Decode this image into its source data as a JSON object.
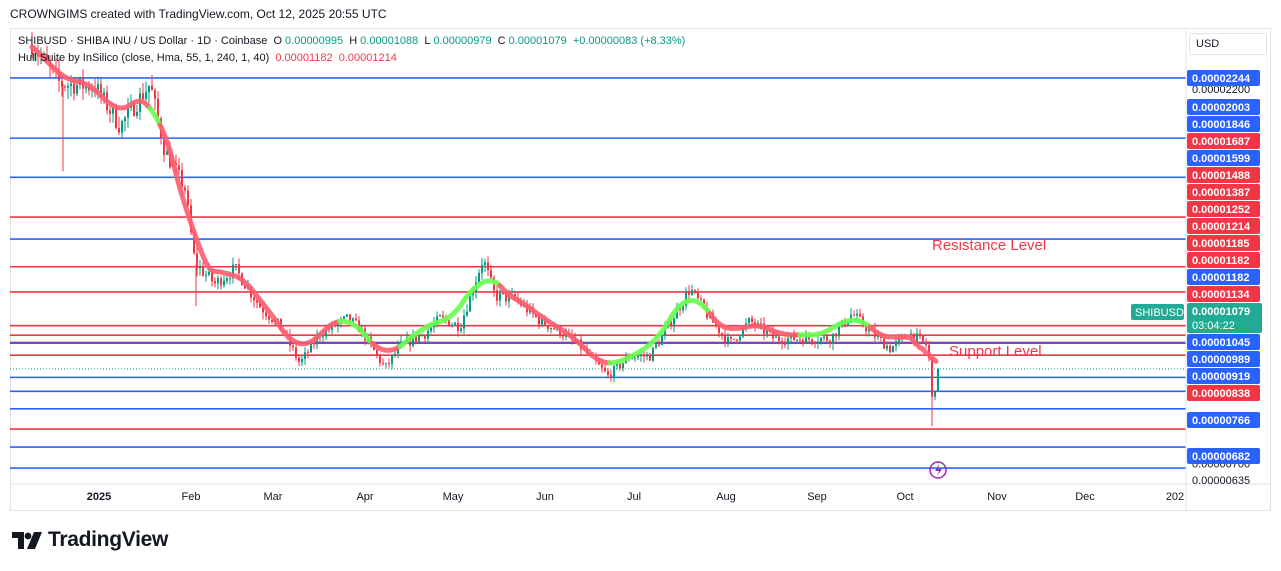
{
  "header": {
    "creator": "CROWNGIMS created with TradingView.com, Oct 12, 2025 20:55 UTC"
  },
  "legend": {
    "symbol": "SHIBUSD · SHIBA INU / US Dollar · 1D · Coinbase",
    "o_label": "O",
    "o_value": "0.00000995",
    "h_label": "H",
    "h_value": "0.00001088",
    "l_label": "L",
    "l_value": "0.00000979",
    "c_label": "C",
    "c_value": "0.00001079",
    "change": "+0.00000083 (+8.33%)",
    "indicator": "Hull Suite by InSilico (close, Hma, 55, 1, 240, 1, 40)",
    "ind_value1": "0.00001182",
    "ind_value2": "0.00001214"
  },
  "price_scale": {
    "currency": "USD"
  },
  "brand": {
    "name": "TradingView"
  },
  "colors": {
    "blue_line": "#2962ff",
    "red_line": "#f23645",
    "up_candle": "#089981",
    "down_candle": "#f23645",
    "hull_up": "#66ff4d",
    "hull_down": "#ff5c6e"
  },
  "chart_data": {
    "type": "candlestick",
    "symbol_badge": "SHIBUSD",
    "last_price": "0.00001079",
    "countdown": "03:04:22",
    "time_axis": [
      "2025",
      "Feb",
      "Mar",
      "Apr",
      "May",
      "Jun",
      "Jul",
      "Aug",
      "Sep",
      "Oct",
      "Nov",
      "Dec",
      "202"
    ],
    "axis_ticks": [
      {
        "label": "0.00002200",
        "value": 2.2e-05
      },
      {
        "label": "0.00000700",
        "value": 7e-06
      },
      {
        "label": "0.00000635",
        "value": 6.35e-06
      }
    ],
    "ylim": [
      6.18e-06,
      2.44e-05
    ],
    "horizontal_levels": [
      {
        "label": "0.00002244",
        "value": 2.244e-05,
        "color": "blue"
      },
      {
        "label": "0.00002003",
        "value": 2.003e-05,
        "color": "blue"
      },
      {
        "label": "0.00001846",
        "value": 1.846e-05,
        "color": "blue"
      },
      {
        "label": "0.00001687",
        "value": 1.687e-05,
        "color": "red"
      },
      {
        "label": "0.00001599",
        "value": 1.599e-05,
        "color": "blue"
      },
      {
        "label": "0.00001488",
        "value": 1.488e-05,
        "color": "red"
      },
      {
        "label": "0.00001387",
        "value": 1.387e-05,
        "color": "red"
      },
      {
        "label": "0.00001252",
        "value": 1.252e-05,
        "color": "red"
      },
      {
        "label": "0.00001214",
        "value": 1.214e-05,
        "color": "red"
      },
      {
        "label": "0.00001185",
        "value": 1.185e-05,
        "color": "red"
      },
      {
        "label": "0.00001182",
        "value": 1.182e-05,
        "color": "red"
      },
      {
        "label": "0.00001182",
        "value": 1.182e-05,
        "color": "blue"
      },
      {
        "label": "0.00001134",
        "value": 1.134e-05,
        "color": "red"
      },
      {
        "label": "0.00001045",
        "value": 1.045e-05,
        "color": "blue"
      },
      {
        "label": "0.00000989",
        "value": 9.89e-06,
        "color": "blue"
      },
      {
        "label": "0.00000919",
        "value": 9.19e-06,
        "color": "blue"
      },
      {
        "label": "0.00000838",
        "value": 8.38e-06,
        "color": "red"
      },
      {
        "label": "0.00000766",
        "value": 7.66e-06,
        "color": "blue"
      },
      {
        "label": "0.00000682",
        "value": 6.82e-06,
        "color": "blue"
      }
    ],
    "annotations": [
      {
        "text": "Resistance Level",
        "value": 1.2e-05
      },
      {
        "text": "Support Level",
        "value": 1e-05
      }
    ]
  }
}
